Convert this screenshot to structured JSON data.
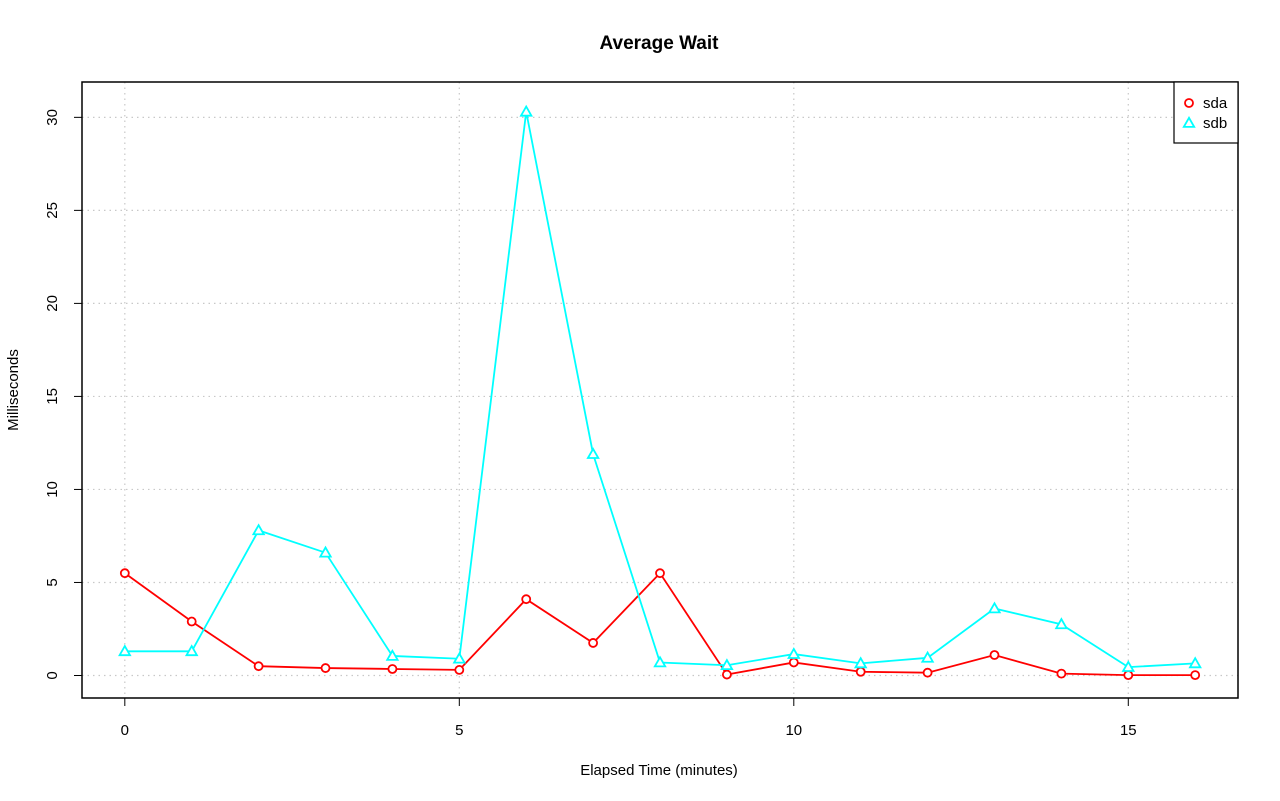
{
  "chart_data": {
    "type": "line",
    "title": "Average Wait",
    "xlabel": "Elapsed Time (minutes)",
    "ylabel": "Milliseconds",
    "xlim": [
      -0.64,
      16.64
    ],
    "ylim": [
      -1.21,
      31.9
    ],
    "x_ticks": [
      0,
      5,
      10,
      15
    ],
    "y_ticks": [
      0,
      5,
      10,
      15,
      20,
      25,
      30
    ],
    "grid": true,
    "legend_position": "top-right",
    "x": [
      0,
      1,
      2,
      3,
      4,
      5,
      6,
      7,
      8,
      9,
      10,
      11,
      12,
      13,
      14,
      15,
      16
    ],
    "series": [
      {
        "name": "sda",
        "color": "#ff0000",
        "marker": "circle",
        "values": [
          5.5,
          2.9,
          0.5,
          0.4,
          0.35,
          0.3,
          4.1,
          1.75,
          5.5,
          0.05,
          0.7,
          0.2,
          0.15,
          1.1,
          0.1,
          0.02,
          0.02
        ]
      },
      {
        "name": "sdb",
        "color": "#00ffff",
        "marker": "triangle",
        "values": [
          1.3,
          1.3,
          7.8,
          6.6,
          1.05,
          0.9,
          30.3,
          11.9,
          0.7,
          0.55,
          1.15,
          0.65,
          0.95,
          3.6,
          2.75,
          0.45,
          0.65
        ]
      }
    ]
  }
}
